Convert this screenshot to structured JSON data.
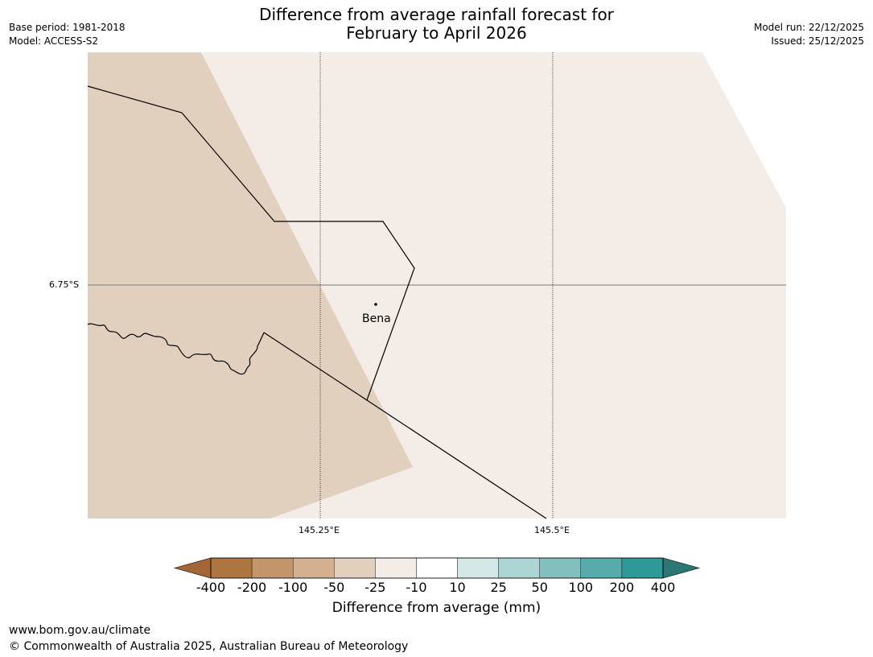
{
  "title": {
    "line1": "Difference from average rainfall forecast for",
    "line2": "February to April 2026"
  },
  "meta_left": {
    "base_period": "Base period: 1981-2018",
    "model": "Model: ACCESS-S2"
  },
  "meta_right": {
    "model_run": "Model run: 22/12/2025",
    "issued": "Issued: 25/12/2025"
  },
  "map": {
    "latitude_labels": [
      "6.75°S"
    ],
    "longitude_labels": [
      "145.25°E",
      "145.5°E"
    ],
    "place": {
      "name": "Bena"
    }
  },
  "colorbar": {
    "tick_labels": [
      "-400",
      "-200",
      "-100",
      "-50",
      "-25",
      "-10",
      "10",
      "25",
      "50",
      "100",
      "200",
      "400"
    ],
    "colors": [
      "#a46636",
      "#ad7640",
      "#c3956b",
      "#d3b190",
      "#e2cfbd",
      "#f4ece7",
      "#ffffff",
      "#d5e8e8",
      "#acd5d4",
      "#83c0bd",
      "#57abab",
      "#2f9997",
      "#2b7776"
    ],
    "label": "Difference from average (mm)"
  },
  "footer": {
    "url": "www.bom.gov.au/climate",
    "copyright": "© Commonwealth of Australia 2025, Australian Bureau of Meteorology"
  }
}
